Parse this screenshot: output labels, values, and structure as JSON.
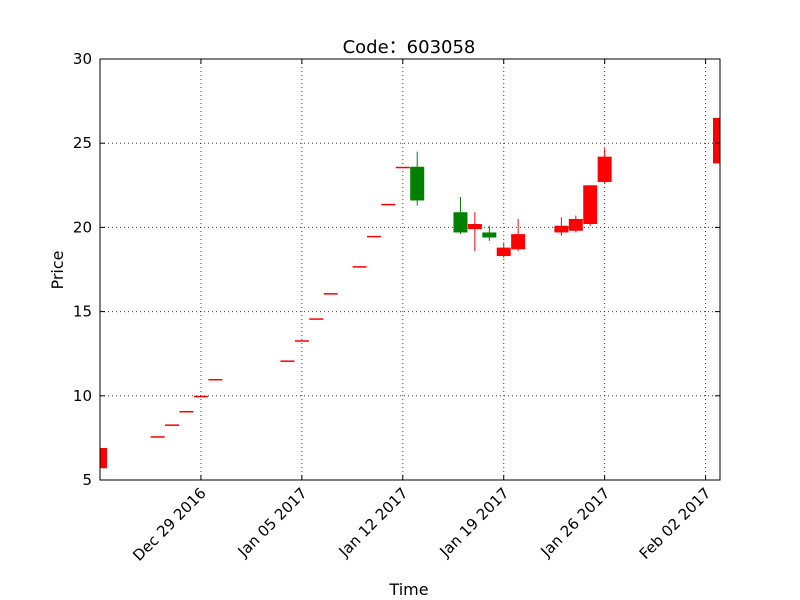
{
  "chart_data": {
    "type": "candlestick",
    "title": "Code：603058",
    "xlabel": "Time",
    "ylabel": "Price",
    "ylim": [
      5,
      30
    ],
    "xlim": [
      "2016-12-22",
      "2017-02-03"
    ],
    "y_ticks": [
      5,
      10,
      15,
      20,
      25,
      30
    ],
    "x_ticks": [
      {
        "date": "2016-12-29",
        "label": "Dec 29 2016"
      },
      {
        "date": "2017-01-05",
        "label": "Jan 05 2017"
      },
      {
        "date": "2017-01-12",
        "label": "Jan 12 2017"
      },
      {
        "date": "2017-01-19",
        "label": "Jan 19 2017"
      },
      {
        "date": "2017-01-26",
        "label": "Jan 26 2017"
      },
      {
        "date": "2017-02-02",
        "label": "Feb 02 2017"
      }
    ],
    "grid": true,
    "colors": {
      "up": "#ff0000",
      "down": "#008000"
    },
    "candles": [
      {
        "date": "2016-12-22",
        "open": 5.7,
        "close": 6.9,
        "high": 6.9,
        "low": 5.7
      },
      {
        "date": "2016-12-26",
        "open": 7.6,
        "close": 7.6,
        "high": 7.6,
        "low": 7.6
      },
      {
        "date": "2016-12-27",
        "open": 8.3,
        "close": 8.3,
        "high": 8.3,
        "low": 8.3
      },
      {
        "date": "2016-12-28",
        "open": 9.1,
        "close": 9.1,
        "high": 9.1,
        "low": 9.1
      },
      {
        "date": "2016-12-29",
        "open": 10.0,
        "close": 10.0,
        "high": 10.0,
        "low": 10.0
      },
      {
        "date": "2016-12-30",
        "open": 11.0,
        "close": 11.0,
        "high": 11.0,
        "low": 11.0
      },
      {
        "date": "2017-01-04",
        "open": 12.1,
        "close": 12.1,
        "high": 12.1,
        "low": 12.1
      },
      {
        "date": "2017-01-05",
        "open": 13.3,
        "close": 13.3,
        "high": 13.3,
        "low": 13.3
      },
      {
        "date": "2017-01-06",
        "open": 14.6,
        "close": 14.6,
        "high": 14.6,
        "low": 14.6
      },
      {
        "date": "2017-01-07",
        "open": 16.1,
        "close": 16.1,
        "high": 16.1,
        "low": 16.1
      },
      {
        "date": "2017-01-09",
        "open": 17.7,
        "close": 17.7,
        "high": 17.7,
        "low": 17.7
      },
      {
        "date": "2017-01-10",
        "open": 19.5,
        "close": 19.5,
        "high": 19.5,
        "low": 19.5
      },
      {
        "date": "2017-01-11",
        "open": 21.4,
        "close": 21.4,
        "high": 21.4,
        "low": 21.4
      },
      {
        "date": "2017-01-12",
        "open": 23.6,
        "close": 23.6,
        "high": 23.6,
        "low": 23.6
      },
      {
        "date": "2017-01-13",
        "open": 23.6,
        "close": 21.6,
        "high": 24.5,
        "low": 21.3
      },
      {
        "date": "2017-01-16",
        "open": 20.9,
        "close": 19.7,
        "high": 21.8,
        "low": 19.6
      },
      {
        "date": "2017-01-17",
        "open": 19.9,
        "close": 20.2,
        "high": 20.9,
        "low": 18.6
      },
      {
        "date": "2017-01-18",
        "open": 19.7,
        "close": 19.4,
        "high": 20.1,
        "low": 19.2
      },
      {
        "date": "2017-01-19",
        "open": 18.3,
        "close": 18.8,
        "high": 19.1,
        "low": 18.2
      },
      {
        "date": "2017-01-20",
        "open": 18.7,
        "close": 19.6,
        "high": 20.5,
        "low": 18.6
      },
      {
        "date": "2017-01-23",
        "open": 19.7,
        "close": 20.1,
        "high": 20.6,
        "low": 19.5
      },
      {
        "date": "2017-01-24",
        "open": 19.8,
        "close": 20.5,
        "high": 20.7,
        "low": 19.7
      },
      {
        "date": "2017-01-25",
        "open": 20.2,
        "close": 22.5,
        "high": 22.5,
        "low": 20.1
      },
      {
        "date": "2017-01-26",
        "open": 22.7,
        "close": 24.2,
        "high": 24.7,
        "low": 22.6
      },
      {
        "date": "2017-02-03",
        "open": 23.8,
        "close": 26.5,
        "high": 26.5,
        "low": 23.7
      }
    ]
  }
}
